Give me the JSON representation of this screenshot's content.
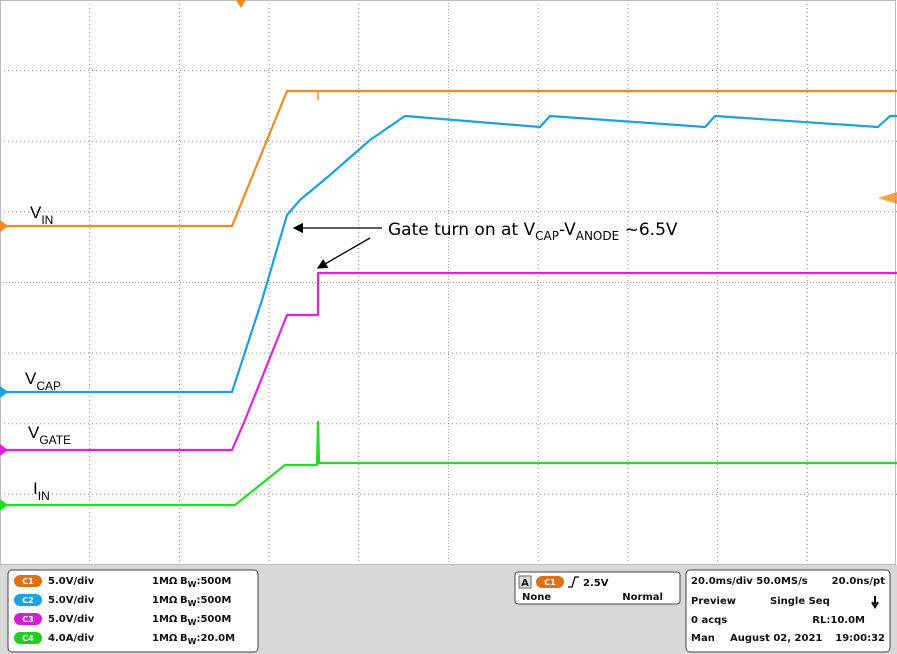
{
  "waveform_labels": [
    {
      "main": "V",
      "sub": "IN"
    },
    {
      "main": "V",
      "sub": "CAP"
    },
    {
      "main": "V",
      "sub": "GATE"
    },
    {
      "main": "I",
      "sub": "IN"
    }
  ],
  "annotation": {
    "text": "Gate turn on at ",
    "v1": "V",
    "sub1": "CAP",
    "dash": "-",
    "v2": "V",
    "sub2": "ANODE",
    "tail": " ~6.5V"
  },
  "channels": [
    {
      "badge": "C1",
      "scale": "5.0V/div",
      "impedance": "1MΩ",
      "bw": "B",
      "bw_sub": "W",
      "bw_value": ":500M"
    },
    {
      "badge": "C2",
      "scale": "5.0V/div",
      "impedance": "1MΩ",
      "bw": "B",
      "bw_sub": "W",
      "bw_value": ":500M"
    },
    {
      "badge": "C3",
      "scale": "5.0V/div",
      "impedance": "1MΩ",
      "bw": "B",
      "bw_sub": "W",
      "bw_value": ":500M"
    },
    {
      "badge": "C4",
      "scale": "4.0A/div",
      "impedance": "1MΩ",
      "bw": "B",
      "bw_sub": "W",
      "bw_value": ":20.0M"
    }
  ],
  "trigger": {
    "letter": "A",
    "badge": "C1",
    "level": "2.5V",
    "coupling": "None",
    "mode": "Normal"
  },
  "timebase": {
    "rate": "20.0ms/div 50.0MS/s",
    "resolution": "20.0ns/pt",
    "state": "Preview",
    "sequence": "Single Seq",
    "acqs": "0 acqs",
    "record": "RL:10.0M",
    "mode": "Man",
    "date": "August 02, 2021",
    "time": "19:00:32"
  }
}
